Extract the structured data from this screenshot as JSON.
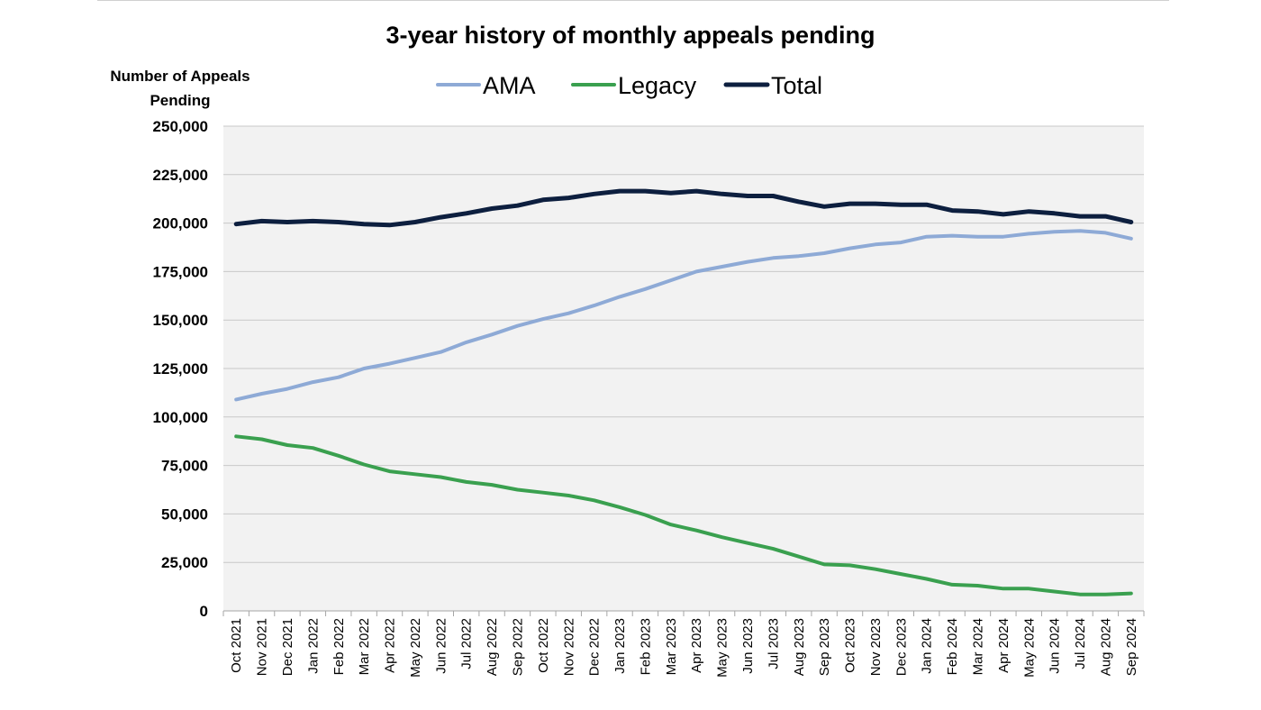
{
  "chart_data": {
    "type": "line",
    "title": "3-year history of monthly appeals pending",
    "ylabel_line1": "Number of Appeals",
    "ylabel_line2": "Pending",
    "xlabel": "",
    "ylim": [
      0,
      250000
    ],
    "yticks": [
      0,
      25000,
      50000,
      75000,
      100000,
      125000,
      150000,
      175000,
      200000,
      225000,
      250000
    ],
    "ytick_labels": [
      "0",
      "25,000",
      "50,000",
      "75,000",
      "100,000",
      "125,000",
      "150,000",
      "175,000",
      "200,000",
      "225,000",
      "250,000"
    ],
    "grid": true,
    "legend_position": "top-center",
    "categories": [
      "Oct 2021",
      "Nov 2021",
      "Dec 2021",
      "Jan 2022",
      "Feb 2022",
      "Mar 2022",
      "Apr 2022",
      "May 2022",
      "Jun 2022",
      "Jul 2022",
      "Aug 2022",
      "Sep 2022",
      "Oct 2022",
      "Nov 2022",
      "Dec 2022",
      "Jan 2023",
      "Feb 2023",
      "Mar 2023",
      "Apr 2023",
      "May 2023",
      "Jun 2023",
      "Jul 2023",
      "Aug 2023",
      "Sep 2023",
      "Oct 2023",
      "Nov 2023",
      "Dec 2023",
      "Jan 2024",
      "Feb 2024",
      "Mar 2024",
      "Apr 2024",
      "May 2024",
      "Jun 2024",
      "Jul 2024",
      "Aug 2024",
      "Sep 2024"
    ],
    "series": [
      {
        "name": "AMA",
        "color": "#8eaad6",
        "values": [
          109000,
          112000,
          114500,
          118000,
          120500,
          125000,
          127500,
          130500,
          133500,
          138500,
          142500,
          147000,
          150500,
          153500,
          157500,
          162000,
          166000,
          170500,
          175000,
          177500,
          180000,
          182000,
          183000,
          184500,
          187000,
          189000,
          190000,
          193000,
          193500,
          193000,
          193000,
          194500,
          195500,
          196000,
          195000,
          192000
        ]
      },
      {
        "name": "Legacy",
        "color": "#3aa04f",
        "values": [
          90000,
          88500,
          85500,
          84000,
          80000,
          75500,
          72000,
          70500,
          69000,
          66500,
          65000,
          62500,
          61000,
          59500,
          57000,
          53500,
          49500,
          44500,
          41500,
          38000,
          35000,
          32000,
          28000,
          24000,
          23500,
          21500,
          19000,
          16500,
          13500,
          13000,
          11500,
          11500,
          10000,
          8500,
          8500,
          9000
        ]
      },
      {
        "name": "Total",
        "color": "#0d1f3f",
        "values": [
          199500,
          201000,
          200500,
          201000,
          200500,
          199500,
          199000,
          200500,
          203000,
          205000,
          207500,
          209000,
          212000,
          213000,
          215000,
          216500,
          216500,
          215500,
          216500,
          215000,
          214000,
          214000,
          211000,
          208500,
          210000,
          210000,
          209500,
          209500,
          206500,
          206000,
          204500,
          206000,
          205000,
          203500,
          203500,
          200500
        ]
      }
    ]
  }
}
